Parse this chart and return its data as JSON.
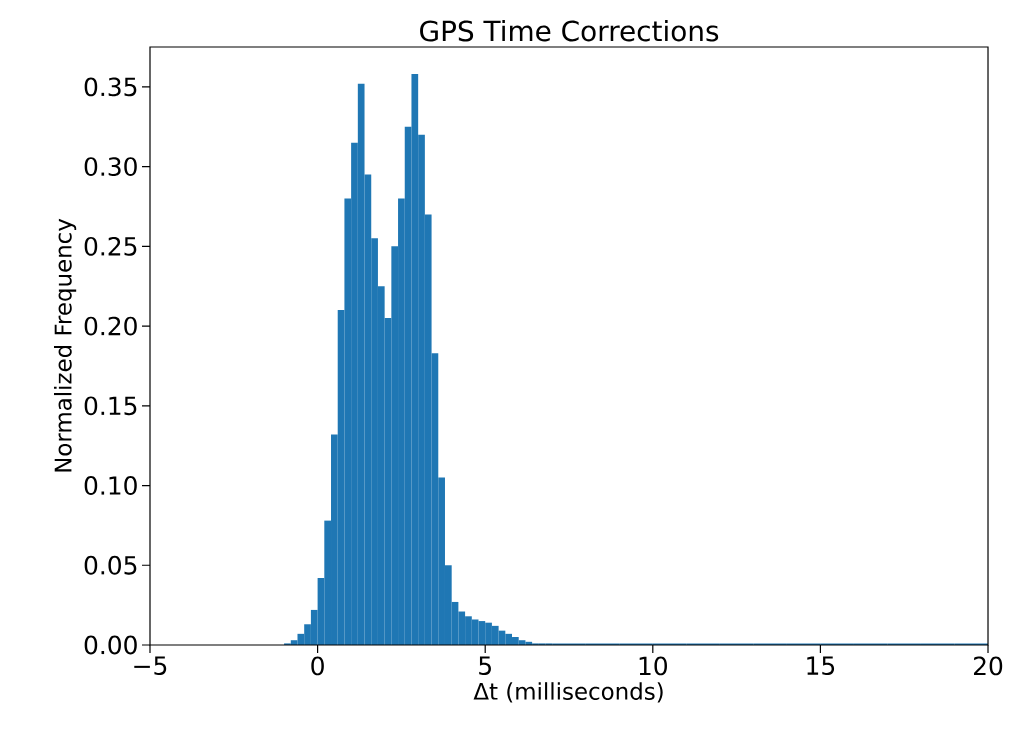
{
  "chart_data": {
    "type": "histogram",
    "title": "GPS Time Corrections",
    "xlabel": "Δt (milliseconds)",
    "ylabel": "Normalized Frequency",
    "color": "#1f77b4",
    "bins": [
      -1.0,
      -0.8,
      -0.6,
      -0.4,
      -0.2,
      0.0,
      0.2,
      0.4,
      0.6,
      0.8,
      1.0,
      1.2,
      1.4,
      1.6,
      1.8,
      2.0,
      2.2,
      2.4,
      2.6,
      2.8,
      3.0,
      3.2,
      3.4,
      3.6,
      3.8,
      4.0,
      4.2,
      4.4,
      4.6,
      4.8,
      5.0,
      5.2,
      5.4,
      5.6,
      5.8,
      6.0,
      6.2,
      6.4,
      6.6,
      6.8,
      7.0,
      8,
      9,
      10,
      11,
      12,
      13,
      14,
      15,
      16,
      17,
      18,
      19,
      20
    ],
    "values": [
      0.001,
      0.003,
      0.007,
      0.013,
      0.022,
      0.042,
      0.078,
      0.132,
      0.21,
      0.28,
      0.315,
      0.352,
      0.295,
      0.255,
      0.225,
      0.205,
      0.25,
      0.28,
      0.325,
      0.358,
      0.32,
      0.27,
      0.183,
      0.105,
      0.05,
      0.027,
      0.021,
      0.018,
      0.016,
      0.015,
      0.014,
      0.012,
      0.009,
      0.007,
      0.005,
      0.003,
      0.002,
      0.001,
      0.001,
      0.001,
      0.001,
      0.001,
      0.001,
      0.001,
      0.001,
      0.001,
      0.001,
      0.001,
      0.001,
      0.001,
      0.001,
      0.001,
      0.001
    ],
    "xlim": [
      -5,
      20
    ],
    "ylim": [
      0,
      0.375
    ],
    "xticks": [
      {
        "value": -5,
        "label": "−5"
      },
      0,
      5,
      10,
      15,
      20
    ],
    "yticks": [
      {
        "value": 0,
        "label": "0.00"
      },
      {
        "value": 0.05,
        "label": "0.05"
      },
      {
        "value": 0.1,
        "label": "0.10"
      },
      {
        "value": 0.15,
        "label": "0.15"
      },
      {
        "value": 0.2,
        "label": "0.20"
      },
      {
        "value": 0.25,
        "label": "0.25"
      },
      {
        "value": 0.3,
        "label": "0.30"
      },
      {
        "value": 0.35,
        "label": "0.35"
      }
    ]
  }
}
